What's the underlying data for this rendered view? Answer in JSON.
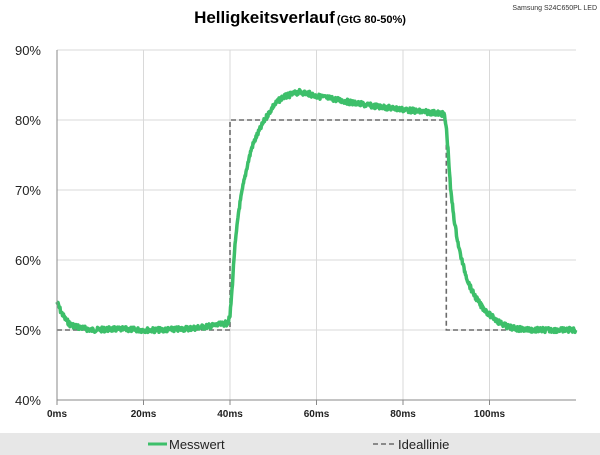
{
  "chart_data": {
    "type": "line",
    "title": "Helligkeitsverlauf",
    "subtitle": "(GtG 80-50%)",
    "device_label": "Samsung S24C650PL LED",
    "xlabel": "",
    "ylabel": "",
    "xlim": [
      0,
      120
    ],
    "ylim": [
      40,
      90
    ],
    "x_ticks": [
      "0ms",
      "20ms",
      "40ms",
      "60ms",
      "80ms",
      "100ms"
    ],
    "y_ticks": [
      "40%",
      "50%",
      "60%",
      "70%",
      "80%",
      "90%"
    ],
    "grid": true,
    "legend_position": "bottom",
    "colors": {
      "messwert": "#3dbf6a",
      "ideallinie": "#6b6b6b",
      "legend_bg": "#e7e7e7"
    },
    "series": [
      {
        "name": "Messwert",
        "x": [
          0,
          1,
          2,
          3,
          5,
          8,
          12,
          16,
          20,
          24,
          28,
          32,
          36,
          38,
          39.5,
          40,
          40.5,
          41,
          42,
          43,
          44,
          45,
          46,
          48,
          50,
          52,
          54,
          56,
          58,
          60,
          64,
          68,
          72,
          76,
          80,
          84,
          88,
          89.5,
          90,
          90.5,
          91,
          92,
          93,
          94,
          95,
          96,
          98,
          100,
          102,
          104,
          106,
          110,
          114,
          120
        ],
        "y": [
          54,
          52.5,
          51.5,
          50.8,
          50.4,
          50,
          50.1,
          50.1,
          50,
          50,
          50.1,
          50.3,
          50.6,
          50.8,
          51,
          52,
          56,
          61,
          67,
          70.5,
          73.5,
          76,
          77.5,
          80,
          82,
          83.2,
          83.6,
          84,
          83.8,
          83.4,
          83,
          82.5,
          82.1,
          81.8,
          81.5,
          81.2,
          81,
          80.8,
          79,
          75,
          70,
          65,
          61.5,
          59,
          57,
          55.5,
          53.5,
          52.2,
          51.2,
          50.5,
          50.2,
          50,
          50,
          50
        ]
      },
      {
        "name": "Ideallinie",
        "x": [
          0,
          40,
          40,
          90,
          90,
          120
        ],
        "y": [
          50,
          50,
          80,
          80,
          50,
          50
        ]
      }
    ]
  }
}
